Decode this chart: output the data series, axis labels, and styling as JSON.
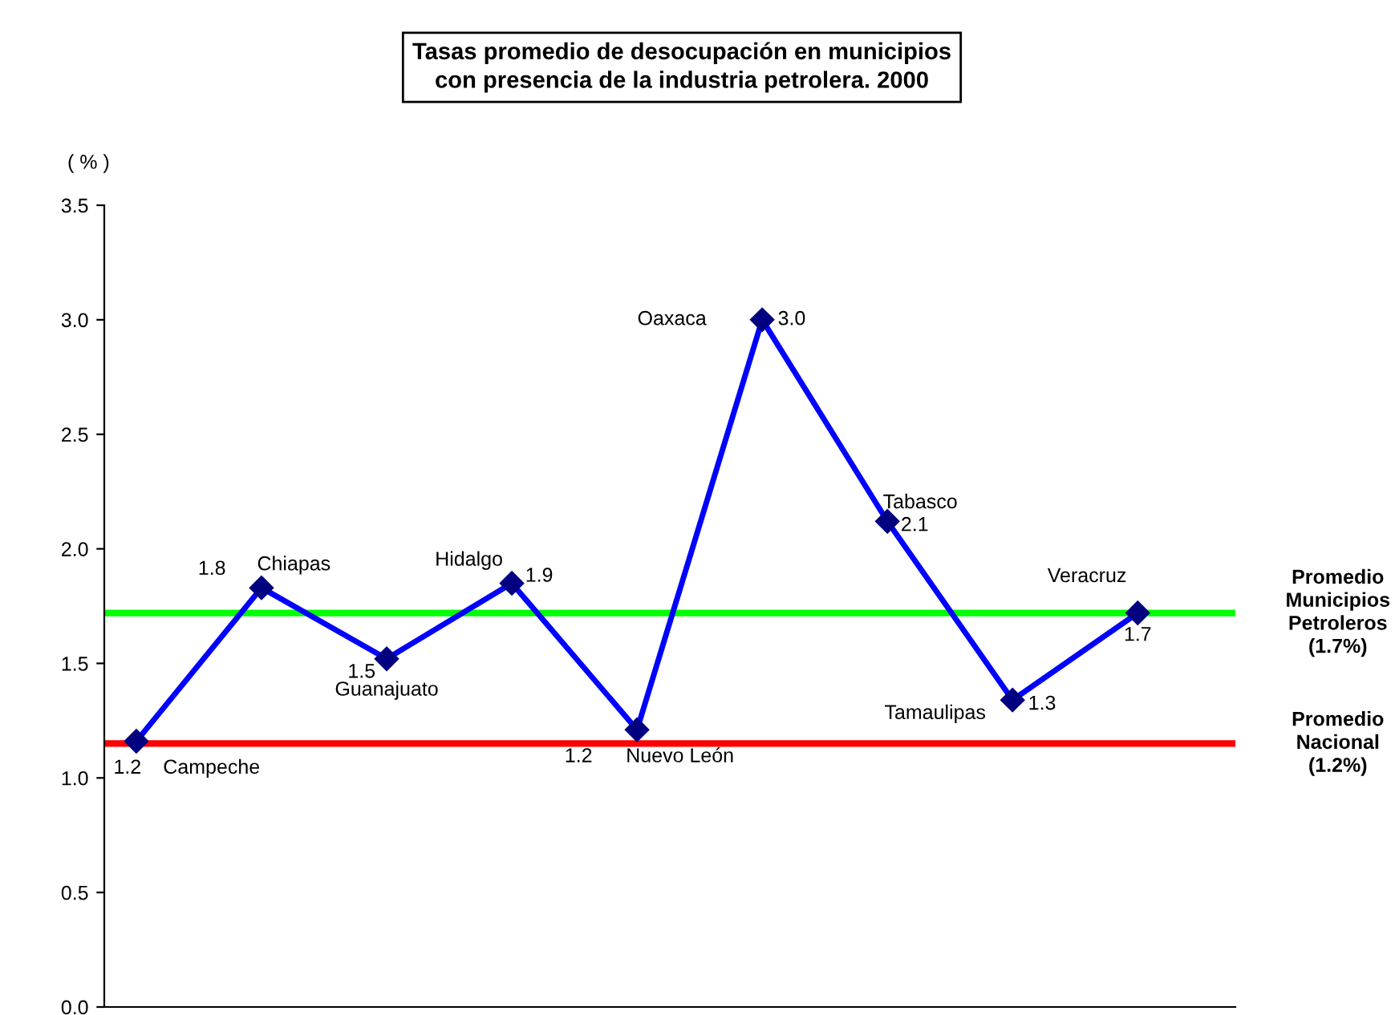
{
  "chart_data": {
    "type": "line",
    "title": "Tasas promedio de desocupación en municipios\ncon presencia de la industria petrolera. 2000",
    "ylabel": "( % )",
    "categories": [
      null,
      null,
      null,
      null,
      null,
      null,
      null,
      null,
      null
    ],
    "series": [
      {
        "color": "#0000ff",
        "values": [
          1.16,
          1.83,
          1.52,
          1.85,
          1.21,
          3.0,
          2.12,
          1.34,
          1.72
        ],
        "value_labels": [
          "1.2",
          "1.8",
          "1.5",
          "1.9",
          "1.2",
          "3.0",
          "2.1",
          "1.3",
          "1.7"
        ]
      }
    ],
    "annotations": [
      "Campeche",
      "Chiapas",
      "Guanajuato",
      "Hidalgo",
      "Nuevo León",
      "Oaxaca",
      "Tabasco",
      "Tamaulipas",
      "Veracruz"
    ],
    "marker": "diamond",
    "line_style": "solid",
    "ylim": [
      0,
      3.5
    ],
    "yticks": [
      {
        "value": 0,
        "label": "0.0"
      },
      {
        "value": 0.5,
        "label": "0.5"
      },
      {
        "value": 1,
        "label": "1.0"
      },
      {
        "value": 1.5,
        "label": "1.5"
      },
      {
        "value": 2,
        "label": "2.0"
      },
      {
        "value": 2.5,
        "label": "2.5"
      },
      {
        "value": 3,
        "label": "3.0"
      },
      {
        "value": 3.5,
        "label": "3.5"
      }
    ],
    "ref_lines": [
      {
        "axis": "y",
        "value": 1.72,
        "label": "Promedio\nMunicipios\nPetroleros\n(1.7%)",
        "color": "#00ff00"
      },
      {
        "axis": "y",
        "value": 1.15,
        "label": "Promedio\nNacional\n(1.2%)",
        "color": "#ff0000"
      }
    ],
    "tick_labels": "y"
  }
}
